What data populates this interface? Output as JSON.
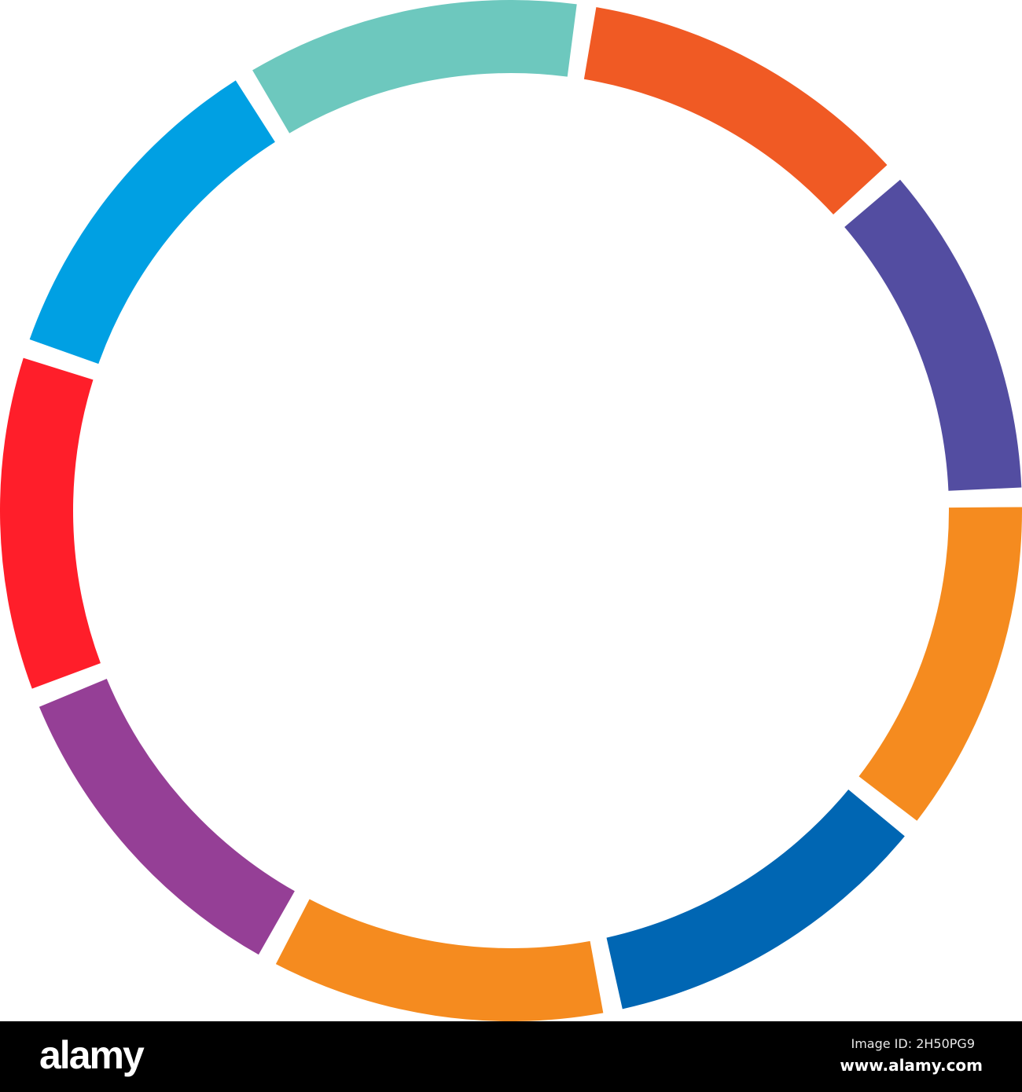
{
  "diagram": {
    "type": "segmented-ring",
    "segments": [
      {
        "color": "#F05A24"
      },
      {
        "color": "#534DA1"
      },
      {
        "color": "#F58B1F"
      },
      {
        "color": "#0066B3"
      },
      {
        "color": "#F58B1F"
      },
      {
        "color": "#953F96"
      },
      {
        "color": "#FF1E2A"
      },
      {
        "color": "#00A0E3"
      },
      {
        "color": "#6DC8BE"
      }
    ]
  },
  "watermark": {
    "logo": "alamy",
    "image_id": "Image ID: 2H50PG9",
    "site": "www.alamy.com"
  }
}
